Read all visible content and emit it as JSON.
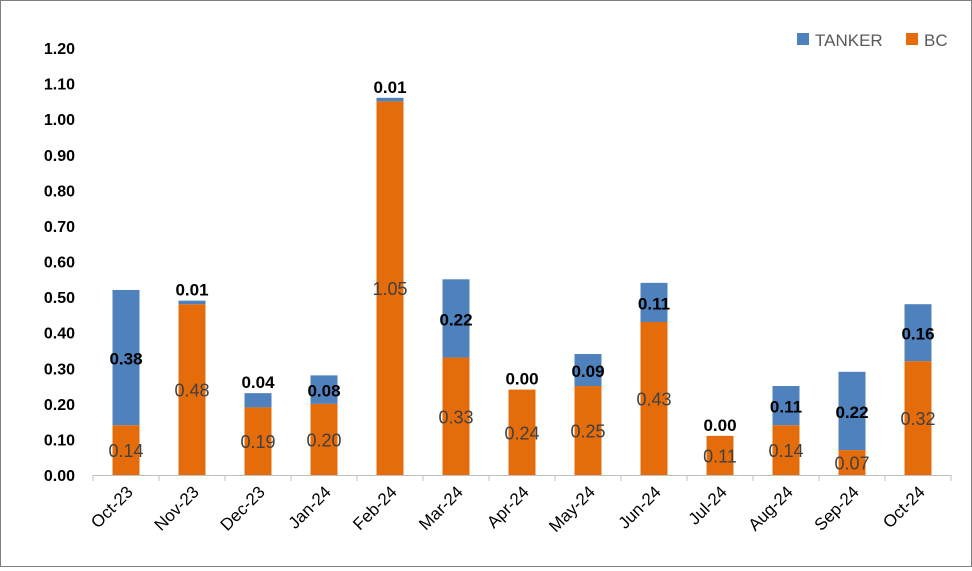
{
  "chart_data": {
    "type": "bar",
    "stacked": true,
    "categories": [
      "Oct-23",
      "Nov-23",
      "Dec-23",
      "Jan-24",
      "Feb-24",
      "Mar-24",
      "Apr-24",
      "May-24",
      "Jun-24",
      "Jul-24",
      "Aug-24",
      "Sep-24",
      "Oct-24"
    ],
    "series": [
      {
        "name": "BC",
        "color": "#e46c0a",
        "values": [
          0.14,
          0.48,
          0.19,
          0.2,
          1.05,
          0.33,
          0.24,
          0.25,
          0.43,
          0.11,
          0.14,
          0.07,
          0.32
        ],
        "labels": [
          "0.14",
          "0.48",
          "0.19",
          "0.20",
          "1.05",
          "0.33",
          "0.24",
          "0.25",
          "0.43",
          "0.11",
          "0.14",
          "0.07",
          "0.32"
        ]
      },
      {
        "name": "TANKER",
        "color": "#4f81bd",
        "values": [
          0.38,
          0.01,
          0.04,
          0.08,
          0.01,
          0.22,
          0.0,
          0.09,
          0.11,
          0.0,
          0.11,
          0.22,
          0.16
        ],
        "labels": [
          "0.38",
          "0.01",
          "0.04",
          "0.08",
          "0.01",
          "0.22",
          "0.00",
          "0.09",
          "0.11",
          "0.00",
          "0.11",
          "0.22",
          "0.16"
        ]
      }
    ],
    "legend": {
      "position": "top-right",
      "order": [
        "TANKER",
        "BC"
      ]
    },
    "ylim": [
      0,
      1.2
    ],
    "yticks": [
      "0.00",
      "0.10",
      "0.20",
      "0.30",
      "0.40",
      "0.50",
      "0.60",
      "0.70",
      "0.80",
      "0.90",
      "1.00",
      "1.10",
      "1.20"
    ],
    "grid": false,
    "title": "",
    "xlabel": "",
    "ylabel": ""
  }
}
